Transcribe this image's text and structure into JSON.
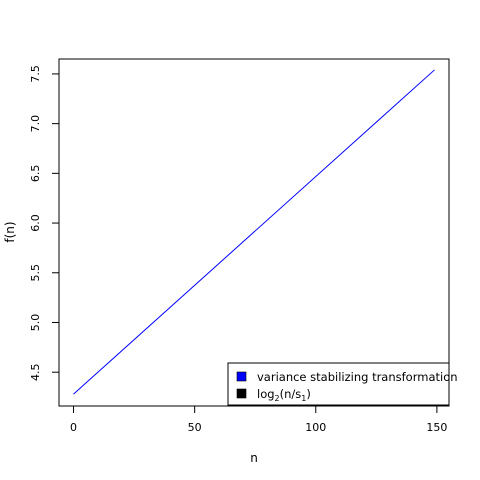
{
  "chart_data": {
    "type": "line",
    "title": "",
    "xlabel": "n",
    "ylabel": "f(n)",
    "xlim": [
      -6,
      155
    ],
    "ylim": [
      4.16,
      7.65
    ],
    "x_ticks": [
      0,
      50,
      100,
      150
    ],
    "y_ticks": [
      4.5,
      5.0,
      5.5,
      6.0,
      6.5,
      7.0,
      7.5
    ],
    "grid": false,
    "series": [
      {
        "name": "variance stabilizing transformation",
        "color": "#0000ff",
        "x": [
          0,
          149
        ],
        "y": [
          4.28,
          7.54
        ]
      }
    ],
    "legend": {
      "position": "bottom-right",
      "entries": [
        {
          "label": "variance stabilizing transformation",
          "color": "#0000ff"
        },
        {
          "label": "log2(n/s1)",
          "base": "log",
          "sub1": "2",
          "mid": "(n/s",
          "sub2": "1",
          "end": ")",
          "color": "#000000"
        }
      ]
    }
  }
}
